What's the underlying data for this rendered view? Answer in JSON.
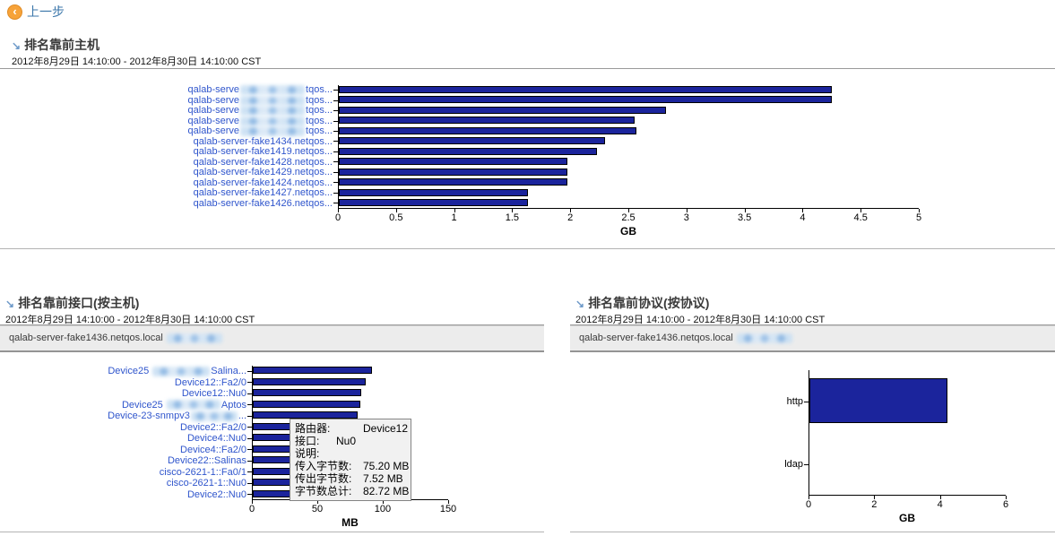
{
  "header": {
    "back_label": "上一步",
    "back_icon": "chevron-left-circle-icon"
  },
  "colors": {
    "bar_fill": "#1b249c",
    "bar_border": "#000000",
    "link_blue": "#2f55cc",
    "back_orange": "#f7a339",
    "heading_arrow_blue": "#6e9ac9",
    "hostbar_bg": "#ececec",
    "tooltip_bg": "#f1f1f1"
  },
  "sections": {
    "top_hosts": {
      "title": "排名靠前主机",
      "date_range": "2012年8月29日 14:10:00 - 2012年8月30日 14:10:00 CST"
    },
    "top_interfaces": {
      "title": "排名靠前接口(按主机)",
      "date_range": "2012年8月29日 14:10:00 - 2012年8月30日 14:10:00 CST",
      "host": "qalab-server-fake1436.netqos.local"
    },
    "top_protocols": {
      "title": "排名靠前协议(按协议)",
      "date_range": "2012年8月29日 14:10:00 - 2012年8月30日 14:10:00 CST",
      "host": "qalab-server-fake1436.netqos.local"
    }
  },
  "tooltip": {
    "rows": [
      {
        "label": "路由器:",
        "value": "Device12"
      },
      {
        "label": "接口:",
        "value": "Nu0"
      },
      {
        "label": "说明:",
        "value": ""
      },
      {
        "label": "传入字节数:",
        "value": "75.20 MB"
      },
      {
        "label": "传出字节数:",
        "value": "7.52 MB"
      },
      {
        "label": "字节数总计:",
        "value": "82.72 MB"
      }
    ]
  },
  "chart_data": [
    {
      "type": "bar",
      "orientation": "horizontal",
      "title": "排名靠前主机",
      "date_range": "2012年8月29日 14:10:00 - 2012年8月30日 14:10:00 CST",
      "categories": [
        [
          {
            "text": "qalab-serve"
          },
          {
            "redacted": true,
            "w": 72
          },
          {
            "text": "tqos..."
          }
        ],
        [
          {
            "text": "qalab-serve"
          },
          {
            "redacted": true,
            "w": 72
          },
          {
            "text": "tqos..."
          }
        ],
        [
          {
            "text": "qalab-serve"
          },
          {
            "redacted": true,
            "w": 72
          },
          {
            "text": "tqos..."
          }
        ],
        [
          {
            "text": "qalab-serve"
          },
          {
            "redacted": true,
            "w": 72
          },
          {
            "text": "tqos..."
          }
        ],
        [
          {
            "text": "qalab-serve"
          },
          {
            "redacted": true,
            "w": 72
          },
          {
            "text": "tqos..."
          }
        ],
        "qalab-server-fake1434.netqos...",
        "qalab-server-fake1419.netqos...",
        "qalab-server-fake1428.netqos...",
        "qalab-server-fake1429.netqos...",
        "qalab-server-fake1424.netqos...",
        "qalab-server-fake1427.netqos...",
        "qalab-server-fake1426.netqos..."
      ],
      "values": [
        4.24,
        4.24,
        2.82,
        2.55,
        2.56,
        2.29,
        2.22,
        1.97,
        1.97,
        1.97,
        1.63,
        1.63
      ],
      "xlabel": "GB",
      "xlim": [
        0,
        5
      ],
      "xticks": [
        0,
        0.5,
        1,
        1.5,
        2,
        2.5,
        3,
        3.5,
        4,
        4.5,
        5
      ],
      "grid": false,
      "legend": false
    },
    {
      "type": "bar",
      "orientation": "horizontal",
      "title": "排名靠前接口(按主机)",
      "date_range": "2012年8月29日 14:10:00 - 2012年8月30日 14:10:00 CST",
      "categories": [
        [
          {
            "text": "Device25 "
          },
          {
            "redacted": true,
            "w": 64
          },
          {
            "text": "Salina..."
          }
        ],
        "Device12::Fa2/0",
        "Device12::Nu0",
        [
          {
            "text": "Device25 "
          },
          {
            "redacted": true,
            "w": 60
          },
          {
            "text": "Aptos"
          }
        ],
        [
          {
            "text": "Device-23-snmpv3"
          },
          {
            "redacted": true,
            "w": 52
          },
          {
            "text": "..."
          }
        ],
        "Device2::Fa2/0",
        "Device4::Nu0",
        "Device4::Fa2/0",
        "Device22::Salinas",
        "cisco-2621-1::Fa0/1",
        "cisco-2621-1::Nu0",
        "Device2::Nu0"
      ],
      "values": [
        91,
        86,
        82.72,
        82,
        80,
        78,
        76,
        74,
        71,
        69,
        66,
        63
      ],
      "xlabel": "MB",
      "xlim": [
        0,
        150
      ],
      "xticks": [
        0,
        50,
        100,
        150
      ],
      "grid": false,
      "legend": false
    },
    {
      "type": "bar",
      "orientation": "horizontal",
      "title": "排名靠前协议(按协议)",
      "date_range": "2012年8月29日 14:10:00 - 2012年8月30日 14:10:00 CST",
      "categories": [
        "http",
        "ldap"
      ],
      "values": [
        4.2,
        0
      ],
      "xlabel": "GB",
      "xlim": [
        0,
        6
      ],
      "xticks": [
        0,
        2,
        4,
        6
      ],
      "grid": false,
      "legend": false
    }
  ]
}
